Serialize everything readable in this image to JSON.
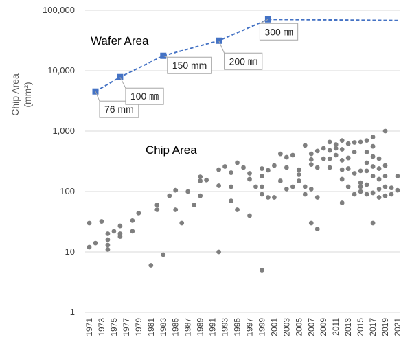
{
  "chart_data": {
    "type": "scatter",
    "title": "",
    "ylabel": "Chip Area",
    "ylabel_unit": "(mm²)",
    "xlabel": "",
    "yscale": "log",
    "ylim": [
      1,
      100000
    ],
    "xlim": [
      1971,
      2021
    ],
    "grid": "horizontal",
    "y_tick_labels": [
      "1",
      "10",
      "100",
      "1,000",
      "10,000",
      "100,000"
    ],
    "y_tick_values": [
      1,
      10,
      100,
      1000,
      10000,
      100000
    ],
    "x_tick_labels": [
      "1971",
      "1973",
      "1975",
      "1977",
      "1979",
      "1981",
      "1983",
      "1985",
      "1987",
      "1989",
      "1991",
      "1993",
      "1995",
      "1997",
      "1999",
      "2001",
      "2003",
      "2005",
      "2007",
      "2009",
      "2011",
      "2013",
      "2015",
      "2017",
      "2019",
      "2021"
    ],
    "annotations": {
      "wafer_area": "Wafer Area",
      "chip_area": "Chip Area"
    },
    "colors": {
      "wafer": "#4472c4",
      "chip": "#7f7f7f",
      "grid": "#d9d9d9"
    },
    "series": [
      {
        "name": "Wafer Area",
        "style": "dashed-line-with-square-markers",
        "points": [
          {
            "x": 1972,
            "y": 4536,
            "label": "76 mm"
          },
          {
            "x": 1976,
            "y": 7854,
            "label": "100 ㎜"
          },
          {
            "x": 1983,
            "y": 17671,
            "label": "150 mm"
          },
          {
            "x": 1992,
            "y": 31416,
            "label": "200 ㎜"
          },
          {
            "x": 2000,
            "y": 70686,
            "label": "300 ㎜"
          }
        ],
        "projection": [
          {
            "x": 2000,
            "y": 70686
          },
          {
            "x": 2021,
            "y": 68000
          }
        ]
      },
      {
        "name": "Chip Area",
        "style": "scatter",
        "points": [
          {
            "x": 1971,
            "y": 12
          },
          {
            "x": 1971,
            "y": 30
          },
          {
            "x": 1972,
            "y": 14
          },
          {
            "x": 1973,
            "y": 32
          },
          {
            "x": 1974,
            "y": 11
          },
          {
            "x": 1974,
            "y": 13
          },
          {
            "x": 1974,
            "y": 16
          },
          {
            "x": 1974,
            "y": 20
          },
          {
            "x": 1975,
            "y": 22
          },
          {
            "x": 1976,
            "y": 18
          },
          {
            "x": 1976,
            "y": 20
          },
          {
            "x": 1976,
            "y": 27
          },
          {
            "x": 1978,
            "y": 22
          },
          {
            "x": 1978,
            "y": 33
          },
          {
            "x": 1979,
            "y": 44
          },
          {
            "x": 1981,
            "y": 6
          },
          {
            "x": 1982,
            "y": 50
          },
          {
            "x": 1982,
            "y": 60
          },
          {
            "x": 1983,
            "y": 9
          },
          {
            "x": 1984,
            "y": 85
          },
          {
            "x": 1985,
            "y": 50
          },
          {
            "x": 1985,
            "y": 105
          },
          {
            "x": 1986,
            "y": 30
          },
          {
            "x": 1987,
            "y": 100
          },
          {
            "x": 1988,
            "y": 60
          },
          {
            "x": 1989,
            "y": 85
          },
          {
            "x": 1989,
            "y": 150
          },
          {
            "x": 1989,
            "y": 175
          },
          {
            "x": 1990,
            "y": 155
          },
          {
            "x": 1992,
            "y": 10
          },
          {
            "x": 1992,
            "y": 125
          },
          {
            "x": 1992,
            "y": 230
          },
          {
            "x": 1993,
            "y": 260
          },
          {
            "x": 1994,
            "y": 70
          },
          {
            "x": 1994,
            "y": 120
          },
          {
            "x": 1994,
            "y": 205
          },
          {
            "x": 1995,
            "y": 50
          },
          {
            "x": 1995,
            "y": 300
          },
          {
            "x": 1996,
            "y": 250
          },
          {
            "x": 1997,
            "y": 40
          },
          {
            "x": 1997,
            "y": 160
          },
          {
            "x": 1997,
            "y": 200
          },
          {
            "x": 1998,
            "y": 120
          },
          {
            "x": 1999,
            "y": 5
          },
          {
            "x": 1999,
            "y": 90
          },
          {
            "x": 1999,
            "y": 120
          },
          {
            "x": 1999,
            "y": 180
          },
          {
            "x": 1999,
            "y": 240
          },
          {
            "x": 2000,
            "y": 80
          },
          {
            "x": 2000,
            "y": 225
          },
          {
            "x": 2001,
            "y": 80
          },
          {
            "x": 2001,
            "y": 270
          },
          {
            "x": 2002,
            "y": 150
          },
          {
            "x": 2002,
            "y": 420
          },
          {
            "x": 2003,
            "y": 110
          },
          {
            "x": 2003,
            "y": 250
          },
          {
            "x": 2003,
            "y": 370
          },
          {
            "x": 2004,
            "y": 120
          },
          {
            "x": 2004,
            "y": 400
          },
          {
            "x": 2005,
            "y": 150
          },
          {
            "x": 2005,
            "y": 190
          },
          {
            "x": 2005,
            "y": 230
          },
          {
            "x": 2006,
            "y": 90
          },
          {
            "x": 2006,
            "y": 120
          },
          {
            "x": 2006,
            "y": 580
          },
          {
            "x": 2007,
            "y": 30
          },
          {
            "x": 2007,
            "y": 110
          },
          {
            "x": 2007,
            "y": 280
          },
          {
            "x": 2007,
            "y": 340
          },
          {
            "x": 2007,
            "y": 420
          },
          {
            "x": 2008,
            "y": 24
          },
          {
            "x": 2008,
            "y": 80
          },
          {
            "x": 2008,
            "y": 250
          },
          {
            "x": 2008,
            "y": 470
          },
          {
            "x": 2009,
            "y": 350
          },
          {
            "x": 2009,
            "y": 520
          },
          {
            "x": 2010,
            "y": 350
          },
          {
            "x": 2010,
            "y": 480
          },
          {
            "x": 2010,
            "y": 660
          },
          {
            "x": 2010,
            "y": 250
          },
          {
            "x": 2011,
            "y": 400
          },
          {
            "x": 2011,
            "y": 520
          },
          {
            "x": 2011,
            "y": 600
          },
          {
            "x": 2012,
            "y": 65
          },
          {
            "x": 2012,
            "y": 160
          },
          {
            "x": 2012,
            "y": 230
          },
          {
            "x": 2012,
            "y": 330
          },
          {
            "x": 2012,
            "y": 500
          },
          {
            "x": 2012,
            "y": 700
          },
          {
            "x": 2013,
            "y": 120
          },
          {
            "x": 2013,
            "y": 240
          },
          {
            "x": 2013,
            "y": 360
          },
          {
            "x": 2013,
            "y": 620
          },
          {
            "x": 2014,
            "y": 90
          },
          {
            "x": 2014,
            "y": 200
          },
          {
            "x": 2014,
            "y": 450
          },
          {
            "x": 2014,
            "y": 650
          },
          {
            "x": 2015,
            "y": 100
          },
          {
            "x": 2015,
            "y": 120
          },
          {
            "x": 2015,
            "y": 140
          },
          {
            "x": 2015,
            "y": 220
          },
          {
            "x": 2015,
            "y": 660
          },
          {
            "x": 2016,
            "y": 90
          },
          {
            "x": 2016,
            "y": 130
          },
          {
            "x": 2016,
            "y": 220
          },
          {
            "x": 2016,
            "y": 300
          },
          {
            "x": 2016,
            "y": 450
          },
          {
            "x": 2016,
            "y": 700
          },
          {
            "x": 2017,
            "y": 30
          },
          {
            "x": 2017,
            "y": 95
          },
          {
            "x": 2017,
            "y": 180
          },
          {
            "x": 2017,
            "y": 260
          },
          {
            "x": 2017,
            "y": 380
          },
          {
            "x": 2017,
            "y": 560
          },
          {
            "x": 2017,
            "y": 800
          },
          {
            "x": 2018,
            "y": 80
          },
          {
            "x": 2018,
            "y": 110
          },
          {
            "x": 2018,
            "y": 160
          },
          {
            "x": 2018,
            "y": 240
          },
          {
            "x": 2018,
            "y": 350
          },
          {
            "x": 2019,
            "y": 85
          },
          {
            "x": 2019,
            "y": 120
          },
          {
            "x": 2019,
            "y": 180
          },
          {
            "x": 2019,
            "y": 270
          },
          {
            "x": 2019,
            "y": 1000
          },
          {
            "x": 2020,
            "y": 90
          },
          {
            "x": 2020,
            "y": 115
          },
          {
            "x": 2021,
            "y": 105
          },
          {
            "x": 2021,
            "y": 180
          }
        ]
      }
    ]
  }
}
